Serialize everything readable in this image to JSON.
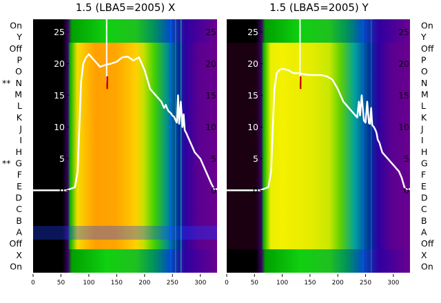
{
  "charts": [
    {
      "title": "1.5 (LBA5=2005) X"
    },
    {
      "title": "1.5 (LBA5=2005) Y"
    }
  ],
  "row_labels": [
    "On",
    "Y",
    "Off",
    "P",
    "O",
    "N",
    "M",
    "L",
    "K",
    "J",
    "I",
    "H",
    "G",
    "F",
    "E",
    "D",
    "C",
    "B",
    "A",
    "Off",
    "X",
    "On"
  ],
  "left_markers": [
    {
      "row_index": 5,
      "text": "**"
    },
    {
      "row_index": 12,
      "text": "**"
    }
  ],
  "colors": {
    "background": "#ffffff",
    "trace": "#ffffff",
    "marker_red": "#cc0000",
    "tick_text": "#000000",
    "y_tick_text_on_image": "#ffffff"
  },
  "chart_data": [
    {
      "type": "line",
      "title": "1.5 (LBA5=2005) X",
      "overlay": "spectrogram heatmap (x vs antenna rows)",
      "xlim": [
        0,
        330
      ],
      "ylim": [
        -13,
        27
      ],
      "xticks": [
        0,
        50,
        100,
        150,
        200,
        250,
        300
      ],
      "yticks": [
        0,
        5,
        10,
        15,
        20,
        25
      ],
      "series": [
        {
          "x": [
            0,
            40,
            60,
            75,
            80,
            83,
            86,
            90,
            95,
            100,
            110,
            120,
            130,
            140,
            150,
            160,
            170,
            180,
            190,
            200,
            210,
            215,
            220,
            225,
            230,
            235,
            238,
            240,
            243,
            247,
            250,
            253,
            256,
            258,
            260,
            262,
            265,
            268,
            270,
            272,
            275,
            280,
            285,
            290,
            295,
            300,
            305,
            310,
            315,
            320,
            325,
            330
          ],
          "values": [
            0,
            0,
            0,
            0.5,
            3,
            10,
            17,
            20,
            21,
            21.5,
            20.5,
            19.5,
            19.8,
            20,
            20.3,
            21,
            21.1,
            20.5,
            21,
            19,
            16,
            15.5,
            15,
            14.5,
            14,
            13,
            13.5,
            13,
            12.5,
            12.2,
            11.8,
            11.6,
            11,
            10.7,
            15,
            10.5,
            14,
            10,
            12,
            9.5,
            9,
            8,
            7,
            6,
            5.5,
            5,
            4,
            3,
            2,
            1,
            0.2,
            0.2
          ]
        }
      ]
    },
    {
      "type": "line",
      "title": "1.5 (LBA5=2005) Y",
      "overlay": "spectrogram heatmap (x vs antenna rows)",
      "xlim": [
        0,
        330
      ],
      "ylim": [
        -13,
        27
      ],
      "xticks": [
        0,
        50,
        100,
        150,
        200,
        250,
        300
      ],
      "yticks": [
        0,
        5,
        10,
        15,
        20,
        25
      ],
      "series": [
        {
          "x": [
            0,
            40,
            60,
            75,
            80,
            83,
            86,
            90,
            95,
            100,
            110,
            120,
            130,
            140,
            150,
            160,
            170,
            180,
            190,
            200,
            210,
            215,
            220,
            225,
            230,
            235,
            238,
            240,
            243,
            247,
            250,
            253,
            256,
            258,
            260,
            262,
            265,
            268,
            270,
            272,
            275,
            280,
            285,
            290,
            295,
            300,
            305,
            310,
            315,
            320,
            325,
            330
          ],
          "values": [
            0,
            0,
            0,
            0.5,
            3,
            10,
            16,
            18.5,
            19,
            19.2,
            19,
            18.5,
            18.5,
            18.3,
            18.2,
            18.2,
            18.2,
            18,
            17.5,
            16,
            14,
            13.5,
            13,
            12.5,
            12,
            11.5,
            14,
            11.8,
            15,
            11,
            10.7,
            14,
            10.6,
            10.5,
            13,
            10.3,
            10,
            9.5,
            9,
            8,
            7.5,
            6,
            5.5,
            5,
            4.5,
            4,
            3.5,
            3,
            2,
            0.5,
            0.2,
            0.2
          ]
        }
      ]
    }
  ]
}
